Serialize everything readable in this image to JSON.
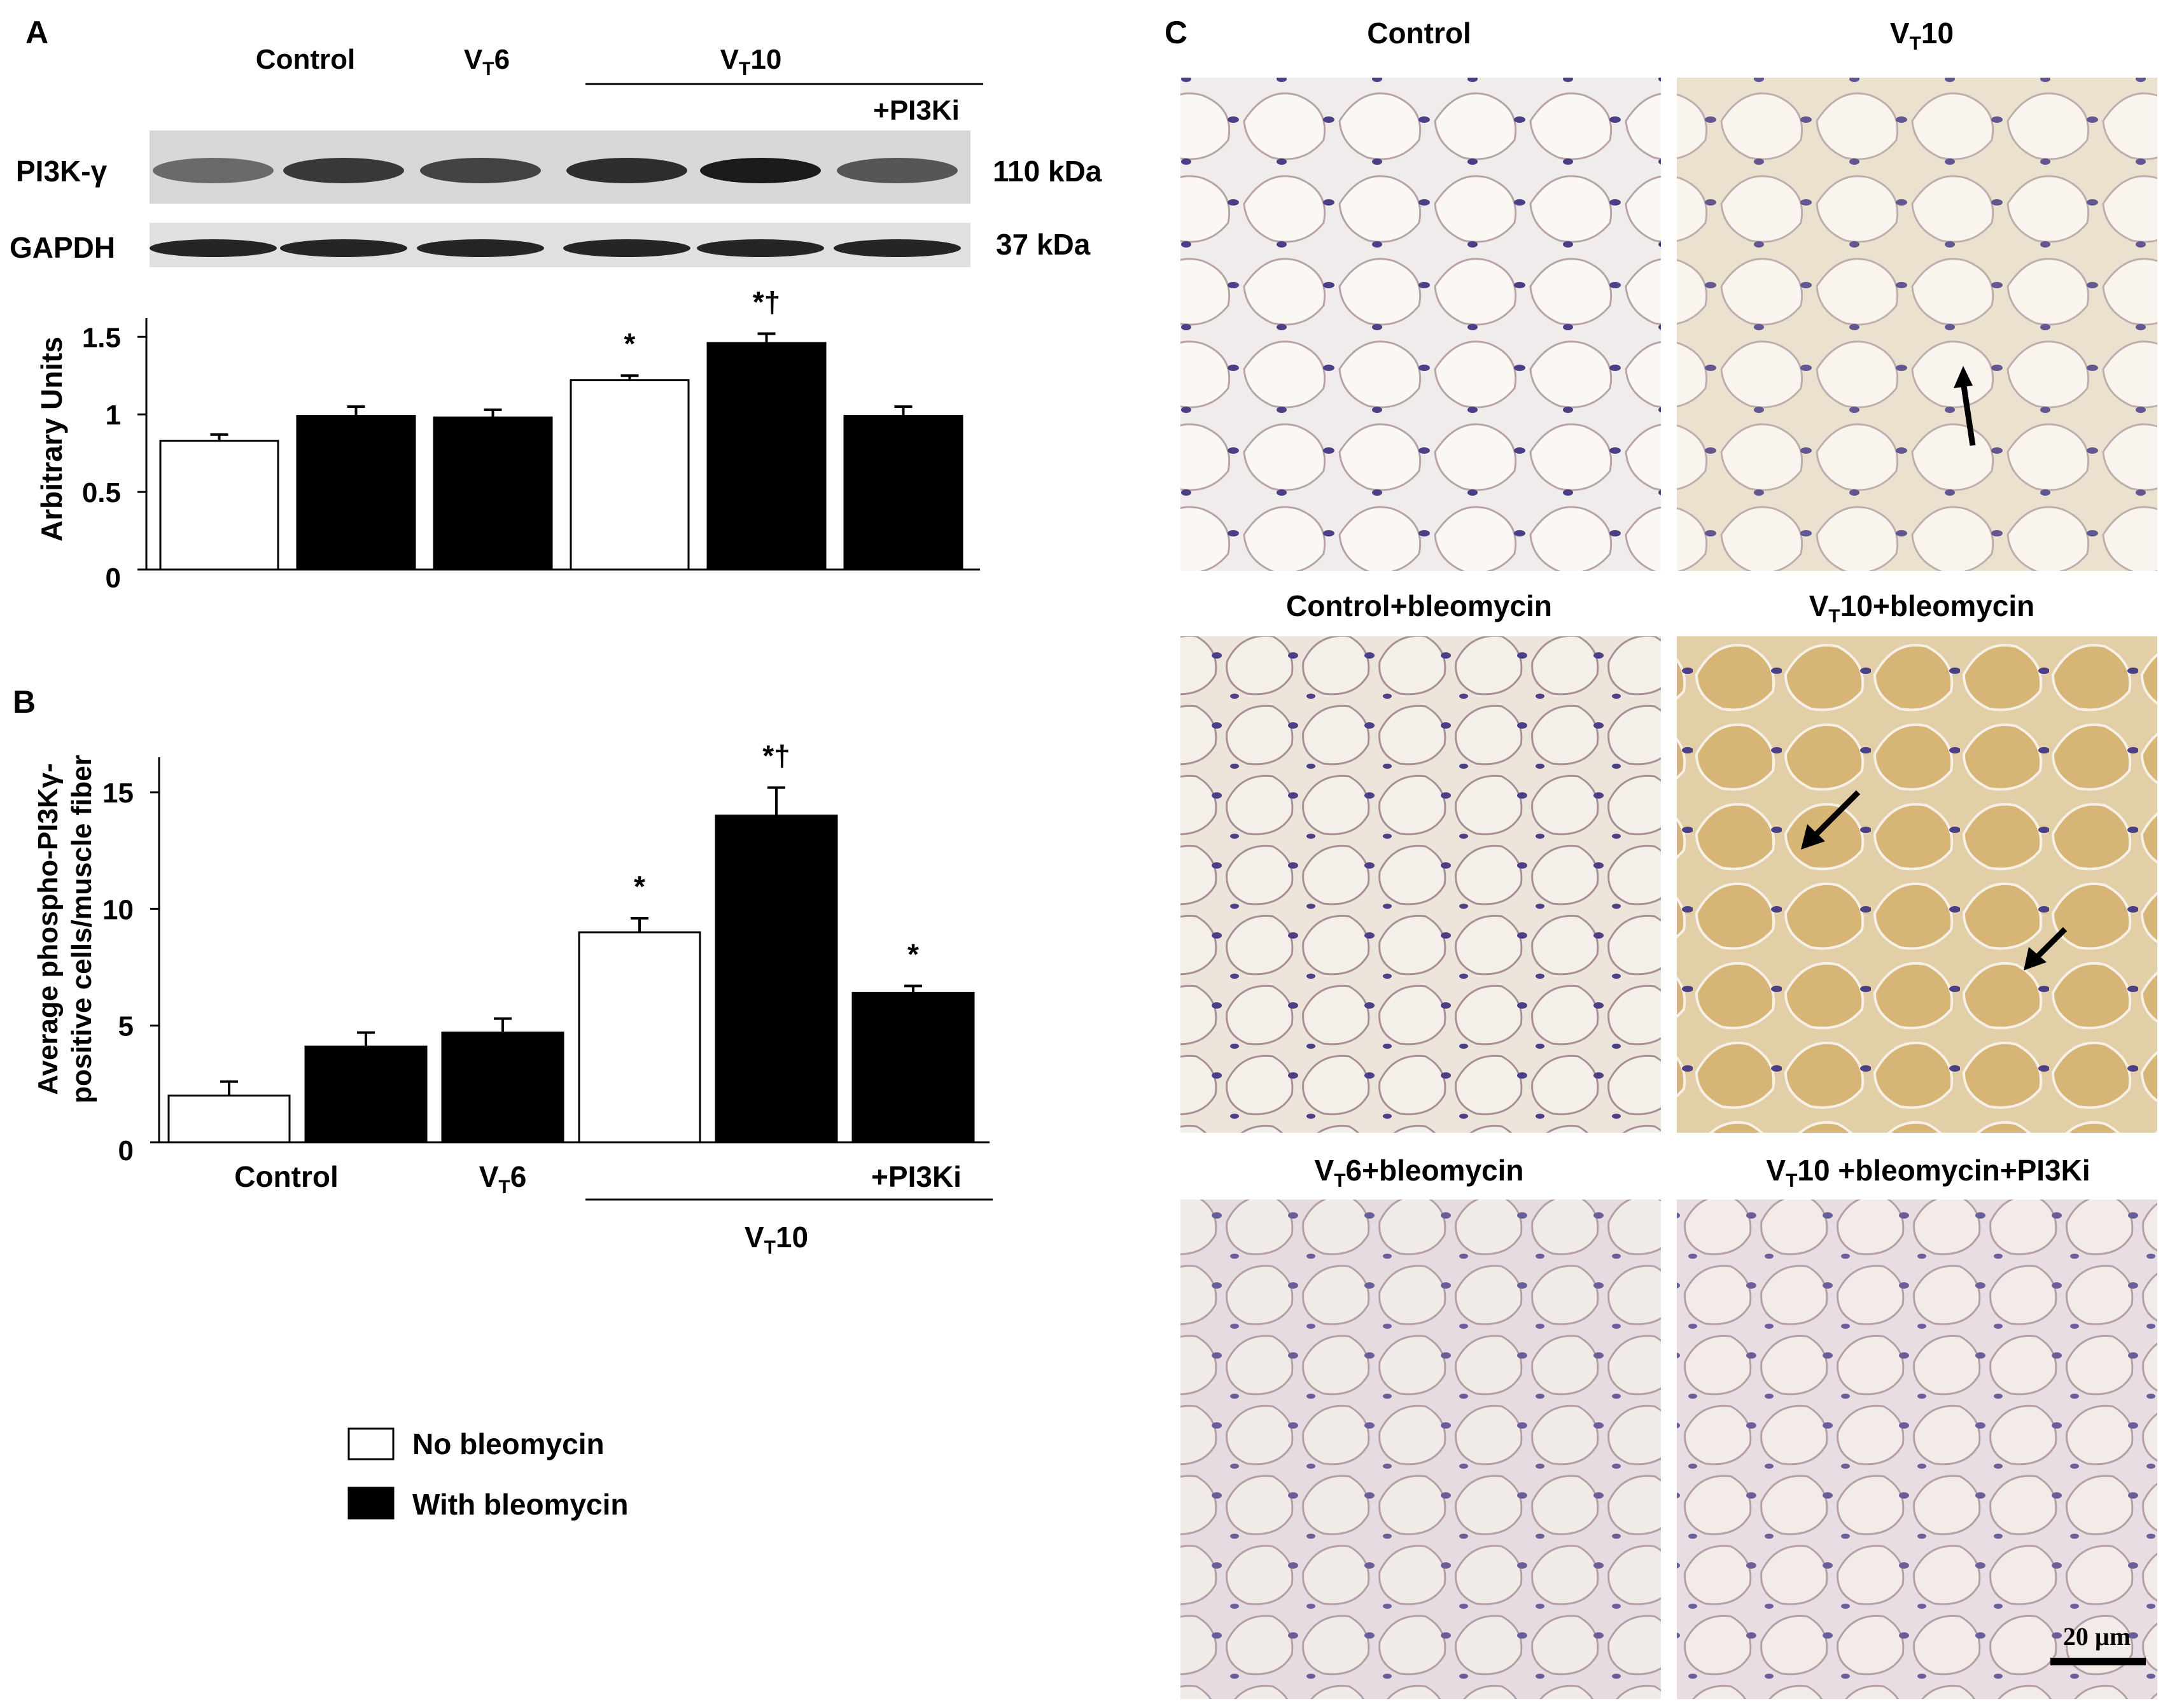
{
  "panel_labels": {
    "a": "A",
    "b": "B",
    "c": "C"
  },
  "blot": {
    "header_control": "Control",
    "header_vt6": {
      "main": "V",
      "sub": "T",
      "tail": "6"
    },
    "header_vt10": {
      "main": "V",
      "sub": "T",
      "tail": "10"
    },
    "header_pi3ki": "+PI3Ki",
    "row1_label": "PI3K-γ",
    "row1_mw": "110 kDa",
    "row2_label": "GAPDH",
    "row2_mw": "37 kDa",
    "row1_intensity": [
      0.55,
      0.8,
      0.75,
      0.85,
      0.95,
      0.65
    ],
    "row2_intensity": [
      0.9,
      0.9,
      0.9,
      0.9,
      0.9,
      0.9
    ]
  },
  "chart_data": [
    {
      "type": "bar",
      "panel": "A",
      "ylabel": "Arbitrary Units",
      "yticks": [
        "0",
        "0.5",
        "1",
        "1.5"
      ],
      "ylim": [
        0,
        1.62
      ],
      "values": [
        0.83,
        0.99,
        0.98,
        1.22,
        1.46,
        0.99
      ],
      "errors": [
        0.04,
        0.06,
        0.05,
        0.03,
        0.06,
        0.06
      ],
      "fills": [
        "white",
        "black",
        "black",
        "white",
        "black",
        "black"
      ],
      "annotations": [
        "",
        "",
        "",
        "*",
        "*†",
        ""
      ]
    },
    {
      "type": "bar",
      "panel": "B",
      "ylabel_line1": "Average phospho-PI3Kγ-",
      "ylabel_line2": "positive cells/muscle fiber",
      "yticks": [
        "0",
        "5",
        "10",
        "15"
      ],
      "ylim": [
        0,
        16.5
      ],
      "values": [
        2.0,
        4.1,
        4.7,
        9.0,
        14.0,
        6.4
      ],
      "errors": [
        0.6,
        0.6,
        0.6,
        0.6,
        1.2,
        0.3
      ],
      "fills": [
        "white",
        "black",
        "black",
        "white",
        "black",
        "black"
      ],
      "annotations": [
        "",
        "",
        "",
        "*",
        "*†",
        "*"
      ],
      "xlabel_control": "Control",
      "xlabel_vt6": {
        "main": "V",
        "sub": "T",
        "tail": "6"
      },
      "xlabel_pi3ki": "+PI3Ki",
      "xlabel_vt10": {
        "main": "V",
        "sub": "T",
        "tail": "10"
      }
    }
  ],
  "legend": {
    "no_bleo": "No bleomycin",
    "with_bleo": "With bleomycin"
  },
  "micrographs": [
    {
      "title": "Control",
      "tint": "#f1ecec"
    },
    {
      "title_main": "V",
      "title_sub": "T",
      "title_tail": "10",
      "tint": "#ebe1cf"
    },
    {
      "title": "Control+bleomycin",
      "tint": "#ede4dc"
    },
    {
      "title_main": "V",
      "title_sub": "T",
      "title_tail": "10+bleomycin",
      "tint": "#e2cfa8"
    },
    {
      "title_main": "V",
      "title_sub": "T",
      "title_tail": "6+bleomycin",
      "tint": "#e6dbe0"
    },
    {
      "title_main": "V",
      "title_sub": "T",
      "title_tail": "10 +bleomycin+PI3Ki",
      "tint": "#e8dde3"
    }
  ],
  "scale_bar": "20 µm"
}
